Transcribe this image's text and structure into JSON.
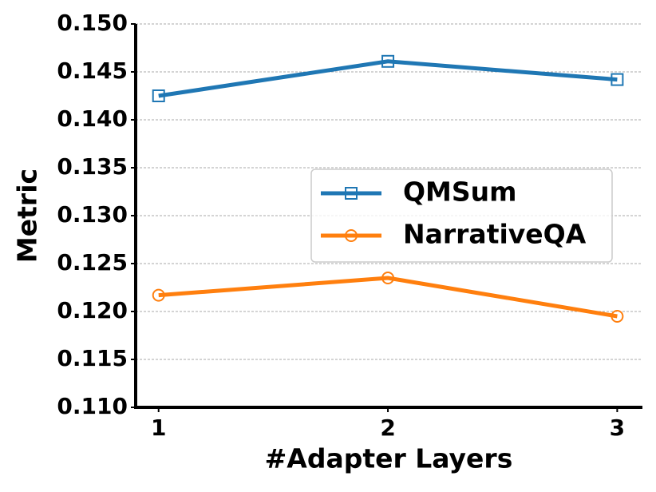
{
  "chart_data": {
    "type": "line",
    "x_label": "#Adapter Layers",
    "y_label": "Metric",
    "x": [
      1,
      2,
      3
    ],
    "series": [
      {
        "name": "QMSum",
        "color": "#1f77b4",
        "marker": "square",
        "values": [
          0.1425,
          0.1461,
          0.1442
        ]
      },
      {
        "name": "NarrativeQA",
        "color": "#ff7f0e",
        "marker": "circle",
        "values": [
          0.1217,
          0.1235,
          0.1195
        ]
      }
    ],
    "xlim": [
      0.9,
      3.11
    ],
    "xticks": [
      1,
      2,
      3
    ],
    "ylim": [
      0.11,
      0.15
    ],
    "yticks": [
      {
        "value": 0.11,
        "label": "0.110"
      },
      0.115,
      {
        "value": 0.12,
        "label": "0.120"
      },
      0.125,
      {
        "value": 0.13,
        "label": "0.130"
      },
      0.135,
      {
        "value": 0.14,
        "label": "0.140"
      },
      0.145,
      {
        "value": 0.15,
        "label": "0.150"
      }
    ],
    "grid": true,
    "legend": "center right"
  }
}
